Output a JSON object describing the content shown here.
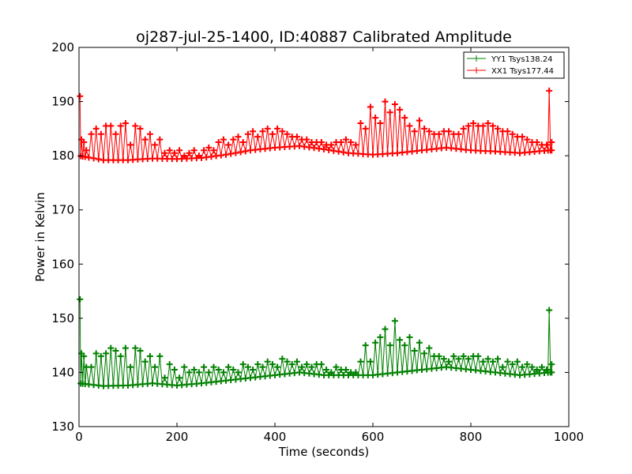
{
  "chart_data": {
    "type": "line",
    "title": "oj287-jul-25-1400, ID:40887 Calibrated Amplitude",
    "xlabel": "Time (seconds)",
    "ylabel": "Power in Kelvin",
    "xlim": [
      0,
      1000
    ],
    "ylim": [
      130,
      200
    ],
    "xticks": [
      0,
      200,
      400,
      600,
      800,
      1000
    ],
    "yticks": [
      130,
      140,
      150,
      160,
      170,
      180,
      190,
      200
    ],
    "grid": false,
    "legend_position": "top-right",
    "marker": "plus",
    "series": [
      {
        "name": "YY1 Tsys138.24",
        "color": "#008000",
        "base": {
          "x": [
            0,
            50,
            100,
            150,
            200,
            250,
            300,
            350,
            400,
            450,
            500,
            550,
            600,
            650,
            700,
            750,
            800,
            850,
            900,
            960
          ],
          "y": [
            138,
            137.5,
            137.6,
            138,
            137.6,
            138,
            138.5,
            139,
            139.5,
            140,
            139.5,
            139.5,
            139.5,
            140,
            140.5,
            141,
            140.5,
            140,
            139.5,
            140
          ]
        },
        "peaks": {
          "x": [
            2,
            5,
            10,
            15,
            25,
            35,
            45,
            55,
            65,
            75,
            85,
            95,
            105,
            115,
            125,
            135,
            145,
            155,
            165,
            175,
            185,
            195,
            205,
            215,
            225,
            235,
            245,
            255,
            265,
            275,
            285,
            295,
            305,
            315,
            325,
            335,
            345,
            355,
            365,
            375,
            385,
            395,
            405,
            415,
            425,
            435,
            445,
            455,
            465,
            475,
            485,
            495,
            505,
            515,
            525,
            535,
            545,
            555,
            565,
            575,
            585,
            595,
            605,
            615,
            625,
            635,
            645,
            655,
            665,
            675,
            685,
            695,
            705,
            715,
            725,
            735,
            745,
            755,
            765,
            775,
            785,
            795,
            805,
            815,
            825,
            835,
            845,
            855,
            865,
            875,
            885,
            895,
            905,
            915,
            925,
            935,
            945,
            955,
            960,
            965
          ],
          "y": [
            153.5,
            143.5,
            143,
            141,
            141,
            143.5,
            143,
            143.5,
            144.5,
            144,
            143,
            144.5,
            141,
            144.5,
            144,
            142,
            143,
            141,
            143,
            139,
            141.5,
            140.5,
            139,
            141,
            140,
            140.5,
            140,
            141,
            140,
            141,
            140.5,
            140,
            141,
            140.5,
            140,
            141.5,
            141,
            140.5,
            141.5,
            141,
            142,
            141.5,
            141,
            142.5,
            142,
            141.5,
            142,
            141,
            141.5,
            141,
            141.5,
            141.5,
            140.5,
            140,
            141,
            140.5,
            140.5,
            140,
            140,
            142,
            145,
            142,
            145.5,
            146.5,
            148,
            145,
            149.5,
            146,
            145,
            146.5,
            144,
            145.5,
            143.5,
            144.5,
            143,
            143,
            142.5,
            142,
            143,
            142.5,
            143,
            142.5,
            143,
            143,
            142,
            142.5,
            142,
            142.5,
            141,
            142,
            141.5,
            142,
            141,
            141.5,
            141,
            140.5,
            141,
            140.5,
            151.5,
            141.5
          ]
        }
      },
      {
        "name": "XX1 Tsys177.44",
        "color": "#ff0000",
        "base": {
          "x": [
            0,
            50,
            100,
            150,
            200,
            250,
            300,
            350,
            400,
            450,
            500,
            550,
            600,
            650,
            700,
            750,
            800,
            850,
            900,
            960
          ],
          "y": [
            180,
            179.2,
            179.2,
            179.5,
            179.4,
            179.6,
            180.2,
            181,
            181.5,
            181.8,
            181.2,
            180.5,
            180.2,
            180.5,
            181,
            181.5,
            181,
            180.8,
            180.5,
            181
          ]
        },
        "peaks": {
          "x": [
            2,
            5,
            10,
            15,
            25,
            35,
            45,
            55,
            65,
            75,
            85,
            95,
            105,
            115,
            125,
            135,
            145,
            155,
            165,
            175,
            185,
            195,
            205,
            215,
            225,
            235,
            245,
            255,
            265,
            275,
            285,
            295,
            305,
            315,
            325,
            335,
            345,
            355,
            365,
            375,
            385,
            395,
            405,
            415,
            425,
            435,
            445,
            455,
            465,
            475,
            485,
            495,
            505,
            515,
            525,
            535,
            545,
            555,
            565,
            575,
            585,
            595,
            605,
            615,
            625,
            635,
            645,
            655,
            665,
            675,
            685,
            695,
            705,
            715,
            725,
            735,
            745,
            755,
            765,
            775,
            785,
            795,
            805,
            815,
            825,
            835,
            845,
            855,
            865,
            875,
            885,
            895,
            905,
            915,
            925,
            935,
            945,
            955,
            960,
            965
          ],
          "y": [
            191,
            183,
            182.5,
            181,
            184,
            185,
            184,
            185.5,
            185.5,
            184,
            185.5,
            186,
            182,
            185.5,
            185,
            183,
            184,
            182,
            183,
            180.5,
            181,
            180.5,
            181,
            180,
            180.5,
            181,
            180,
            181,
            181.5,
            181,
            182.5,
            183,
            182,
            183,
            183.5,
            182.5,
            184,
            184.5,
            183.5,
            184.5,
            185,
            184,
            185,
            184.5,
            184,
            183.5,
            183.5,
            183,
            183,
            182.5,
            182.5,
            182.5,
            182,
            182,
            182.5,
            182.5,
            183,
            182.5,
            182,
            186,
            185,
            189,
            187,
            186,
            190,
            188,
            189.5,
            188.5,
            187,
            185.5,
            184.5,
            186.5,
            185,
            184.5,
            184,
            184,
            184.5,
            184.5,
            184,
            184,
            185,
            185.5,
            186,
            185.5,
            185.5,
            186,
            185.5,
            185,
            184.5,
            184.5,
            184,
            183.5,
            183.5,
            183,
            182.5,
            182.5,
            182,
            182,
            192,
            182.5
          ]
        }
      }
    ]
  }
}
